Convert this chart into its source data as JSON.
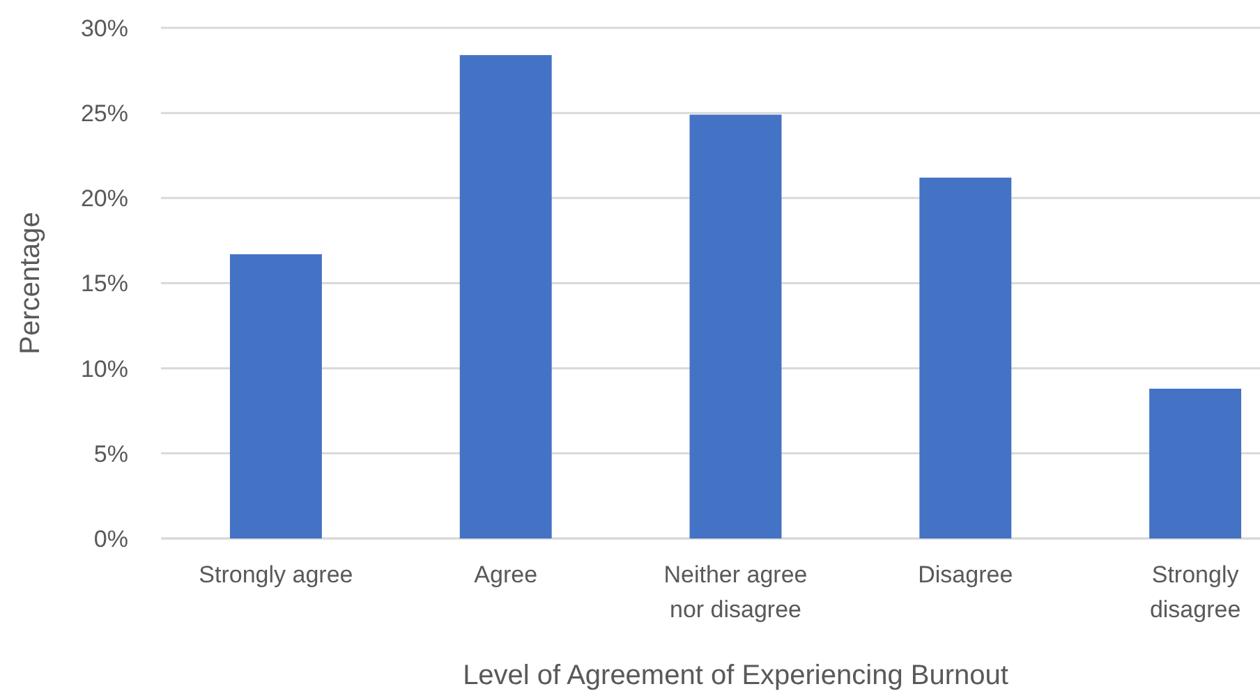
{
  "chart_data": {
    "type": "bar",
    "xlabel": "Level of Agreement of Experiencing Burnout",
    "ylabel": "Percentage",
    "categories": [
      "Strongly agree",
      "Agree",
      "Neither agree nor disagree",
      "Disagree",
      "Strongly disagree"
    ],
    "values": [
      16.7,
      28.4,
      24.9,
      21.2,
      8.8
    ],
    "color": "#4472c4",
    "ylim": [
      0,
      30
    ],
    "yticks": [
      {
        "value": 0,
        "label": "0%"
      },
      {
        "value": 5,
        "label": "5%"
      },
      {
        "value": 10,
        "label": "10%"
      },
      {
        "value": 15,
        "label": "15%"
      },
      {
        "value": 20,
        "label": "20%"
      },
      {
        "value": 25,
        "label": "25%"
      },
      {
        "value": 30,
        "label": "30%"
      }
    ],
    "grid": true
  }
}
